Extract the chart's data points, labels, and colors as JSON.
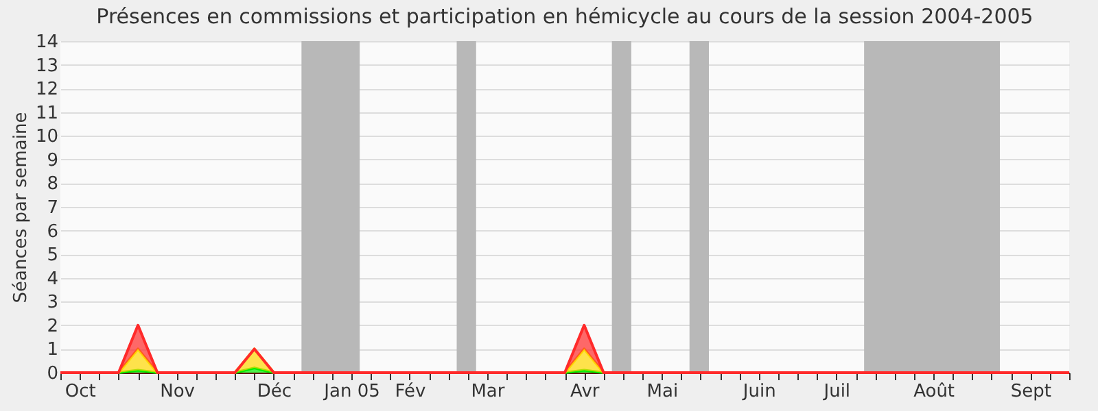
{
  "chart_data": {
    "type": "area",
    "title": "Présences en commissions et participation en hémicycle au cours de la session 2004-2005",
    "ylabel": "Séances par semaine",
    "stacked": true,
    "grid": "y",
    "x": [
      "2004-09-30",
      "2004-10-21",
      "2004-10-28",
      "2004-11-04",
      "2004-12-02",
      "2004-12-09",
      "2004-12-16",
      "2005-03-31",
      "2005-04-07",
      "2005-04-14",
      "2005-09-29"
    ],
    "series": [
      {
        "color": "#00ee00",
        "values": [
          0,
          0,
          0.1,
          0,
          0,
          0.2,
          0,
          0,
          0.1,
          0,
          0
        ]
      },
      {
        "color": "#ffd700",
        "values": [
          0,
          0,
          0.9,
          0,
          0,
          0.8,
          0,
          0,
          0.9,
          0,
          0
        ]
      },
      {
        "color": "#ff2a2a",
        "values": [
          0,
          0,
          1,
          0,
          0,
          0,
          0,
          0,
          1,
          0,
          0
        ]
      }
    ],
    "xlim": [
      "2004-09-30",
      "2005-09-29"
    ],
    "xticks": [
      {
        "value": "2004-09-30",
        "label": null
      },
      {
        "value": "2004-10-07",
        "label": "Oct"
      },
      {
        "value": "2004-10-14",
        "label": null
      },
      {
        "value": "2004-10-21",
        "label": null
      },
      {
        "value": "2004-10-28",
        "label": null
      },
      {
        "value": "2004-11-04",
        "label": null
      },
      {
        "value": "2004-11-11",
        "label": "Nov"
      },
      {
        "value": "2004-11-18",
        "label": null
      },
      {
        "value": "2004-11-25",
        "label": null
      },
      {
        "value": "2004-12-02",
        "label": null
      },
      {
        "value": "2004-12-09",
        "label": null
      },
      {
        "value": "2004-12-16",
        "label": "Déc"
      },
      {
        "value": "2004-12-23",
        "label": null
      },
      {
        "value": "2004-12-30",
        "label": null
      },
      {
        "value": "2005-01-06",
        "label": null
      },
      {
        "value": "2005-01-13",
        "label": "Jan 05"
      },
      {
        "value": "2005-01-20",
        "label": null
      },
      {
        "value": "2005-01-27",
        "label": null
      },
      {
        "value": "2005-02-03",
        "label": "Fév"
      },
      {
        "value": "2005-02-10",
        "label": null
      },
      {
        "value": "2005-02-17",
        "label": null
      },
      {
        "value": "2005-02-24",
        "label": null
      },
      {
        "value": "2005-03-03",
        "label": "Mar"
      },
      {
        "value": "2005-03-10",
        "label": null
      },
      {
        "value": "2005-03-17",
        "label": null
      },
      {
        "value": "2005-03-24",
        "label": null
      },
      {
        "value": "2005-03-31",
        "label": null
      },
      {
        "value": "2005-04-07",
        "label": "Avr"
      },
      {
        "value": "2005-04-14",
        "label": null
      },
      {
        "value": "2005-04-21",
        "label": null
      },
      {
        "value": "2005-04-28",
        "label": null
      },
      {
        "value": "2005-05-05",
        "label": "Mai"
      },
      {
        "value": "2005-05-12",
        "label": null
      },
      {
        "value": "2005-05-19",
        "label": null
      },
      {
        "value": "2005-05-26",
        "label": null
      },
      {
        "value": "2005-06-02",
        "label": null
      },
      {
        "value": "2005-06-09",
        "label": "Juin"
      },
      {
        "value": "2005-06-16",
        "label": null
      },
      {
        "value": "2005-06-23",
        "label": null
      },
      {
        "value": "2005-06-30",
        "label": null
      },
      {
        "value": "2005-07-07",
        "label": "Juil"
      },
      {
        "value": "2005-07-14",
        "label": null
      },
      {
        "value": "2005-07-21",
        "label": null
      },
      {
        "value": "2005-07-28",
        "label": null
      },
      {
        "value": "2005-08-04",
        "label": null
      },
      {
        "value": "2005-08-11",
        "label": "Août"
      },
      {
        "value": "2005-08-18",
        "label": null
      },
      {
        "value": "2005-08-25",
        "label": null
      },
      {
        "value": "2005-09-01",
        "label": null
      },
      {
        "value": "2005-09-08",
        "label": null
      },
      {
        "value": "2005-09-15",
        "label": "Sept"
      },
      {
        "value": "2005-09-22",
        "label": null
      },
      {
        "value": "2005-09-29",
        "label": null
      }
    ],
    "ylim": [
      0,
      14
    ],
    "yticks": [
      0,
      1,
      2,
      3,
      4,
      5,
      6,
      7,
      8,
      9,
      10,
      11,
      12,
      13,
      14
    ],
    "bands": [
      {
        "axis": "x",
        "from": "2004-12-26",
        "to": "2005-01-16",
        "color": "#b8b8b8"
      },
      {
        "axis": "x",
        "from": "2005-02-20",
        "to": "2005-02-27",
        "color": "#b8b8b8"
      },
      {
        "axis": "x",
        "from": "2005-04-17",
        "to": "2005-04-24",
        "color": "#b8b8b8"
      },
      {
        "axis": "x",
        "from": "2005-05-15",
        "to": "2005-05-22",
        "color": "#b8b8b8"
      },
      {
        "axis": "x",
        "from": "2005-07-17",
        "to": "2005-09-04",
        "color": "#b8b8b8"
      }
    ]
  }
}
